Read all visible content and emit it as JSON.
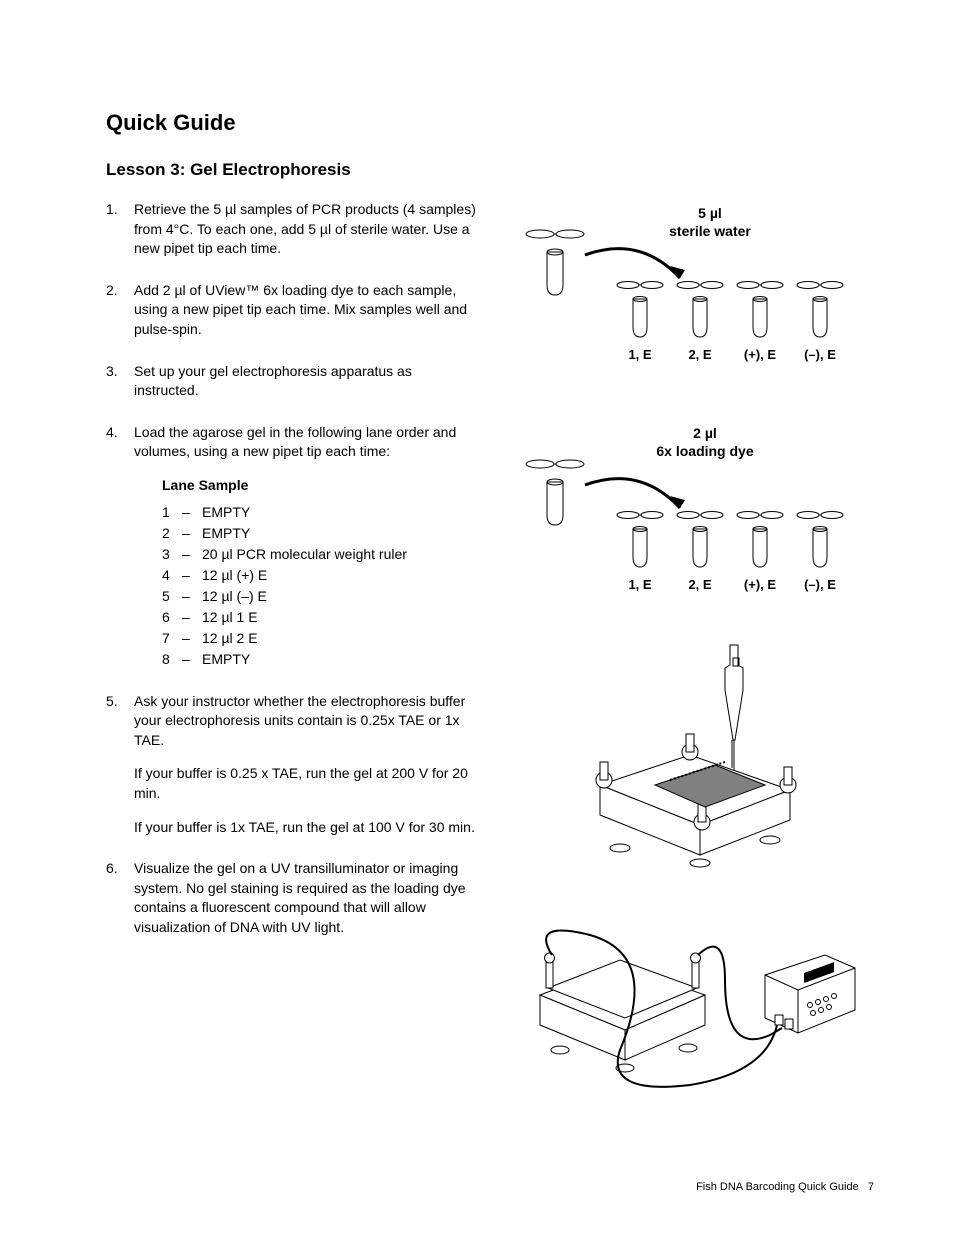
{
  "title": "Quick Guide",
  "subtitle": "Lesson 3: Gel Electrophoresis",
  "steps": {
    "s1": "Retrieve the 5 µl samples of PCR products (4 samples) from 4°C. To each one, add 5 µl of sterile water. Use a new pipet tip each time.",
    "s2": "Add 2 µl of UView™ 6x loading dye to each sample, using a new pipet tip each time. Mix samples well and pulse-spin.",
    "s3": "Set up your gel electrophoresis apparatus as instructed.",
    "s4": "Load the agarose gel in the following lane order and volumes, using a new pipet tip each time:",
    "s5_a": "Ask your instructor whether the electrophoresis buffer your electrophoresis units contain is 0.25x TAE or 1x TAE.",
    "s5_b": "If your buffer is 0.25 x TAE, run the gel at 200 V for 20 min.",
    "s5_c": "If your buffer is 1x TAE, run the gel at 100 V for 30 min.",
    "s6": "Visualize the gel on a UV transilluminator or imaging system. No gel staining is required as the loading dye contains a fluorescent compound that will allow visualization of DNA with UV light."
  },
  "lane_header": "Lane Sample",
  "lanes": [
    {
      "num": "1",
      "desc": "EMPTY"
    },
    {
      "num": "2",
      "desc": "EMPTY"
    },
    {
      "num": "3",
      "desc": "20 µl PCR molecular weight ruler"
    },
    {
      "num": "4",
      "desc": "12 µl (+) E"
    },
    {
      "num": "5",
      "desc": "12 µl (–) E"
    },
    {
      "num": "6",
      "desc": "12 µl 1 E"
    },
    {
      "num": "7",
      "desc": "12 µl 2 E"
    },
    {
      "num": "8",
      "desc": "EMPTY"
    }
  ],
  "diagram1": {
    "label1": "5 µl",
    "label2": "sterile water",
    "tube_labels": [
      "1, E",
      "2, E",
      "(+), E",
      "(–), E"
    ]
  },
  "diagram2": {
    "label1": "2 µl",
    "label2": "6x loading dye",
    "tube_labels": [
      "1, E",
      "2, E",
      "(+), E",
      "(–), E"
    ]
  },
  "footer": {
    "text": "Fish DNA Barcoding Quick Guide",
    "page": "7"
  },
  "colors": {
    "text": "#000000",
    "bg": "#ffffff",
    "stroke": "#000000",
    "gel_fill": "#808080"
  }
}
